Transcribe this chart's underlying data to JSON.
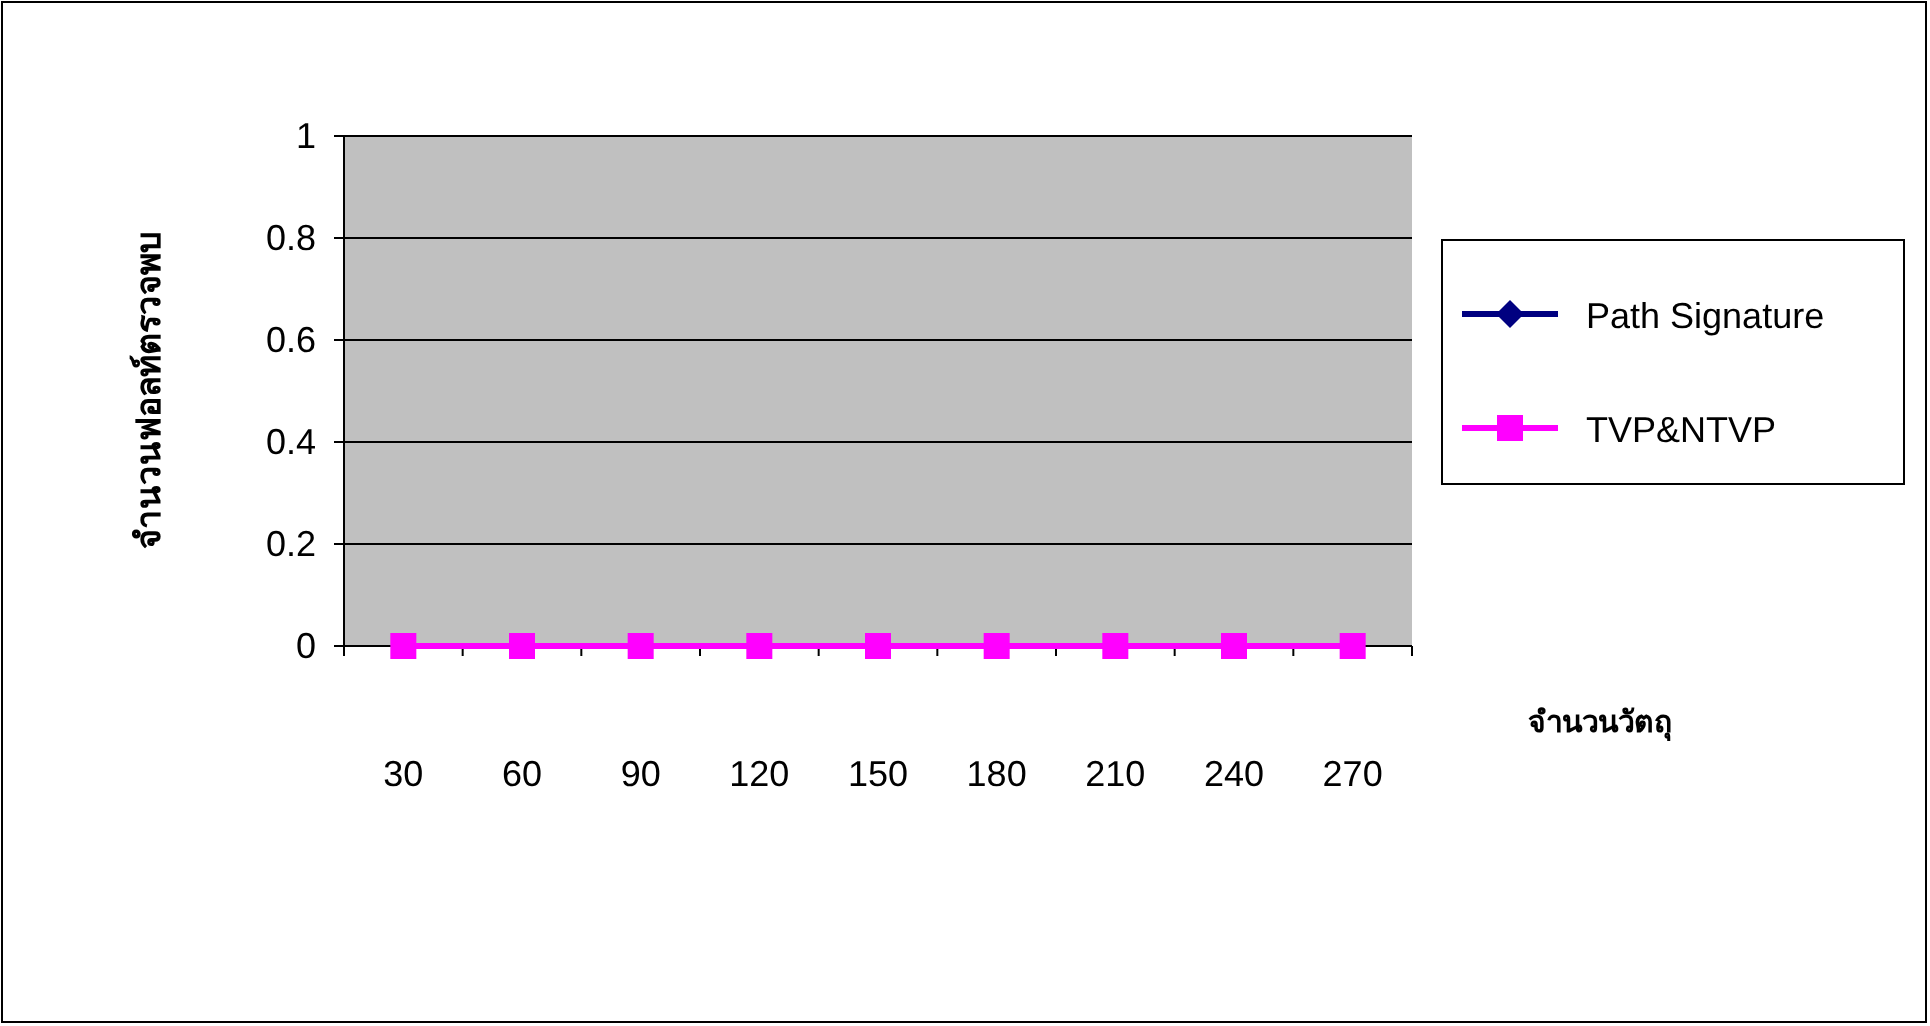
{
  "chart_data": {
    "type": "line",
    "xlabel": "จำนวนวัตถุ",
    "ylabel": "จำนวนฟอลท์ตรวจพบ",
    "categories": [
      "30",
      "60",
      "90",
      "120",
      "150",
      "180",
      "210",
      "240",
      "270"
    ],
    "series": [
      {
        "name": "Path Signature",
        "color": "#000080",
        "marker": "diamond",
        "values": [
          null,
          null,
          null,
          null,
          null,
          null,
          null,
          null,
          null
        ]
      },
      {
        "name": "TVP&NTVP",
        "color": "#ff00ff",
        "marker": "square",
        "values": [
          0,
          0,
          0,
          0,
          0,
          0,
          0,
          0,
          0
        ]
      }
    ],
    "ylim": [
      0,
      1
    ],
    "yticks": [
      0,
      0.2,
      0.4,
      0.6,
      0.8,
      1
    ],
    "grid": "y",
    "legend": "right",
    "line_style": "solid"
  }
}
